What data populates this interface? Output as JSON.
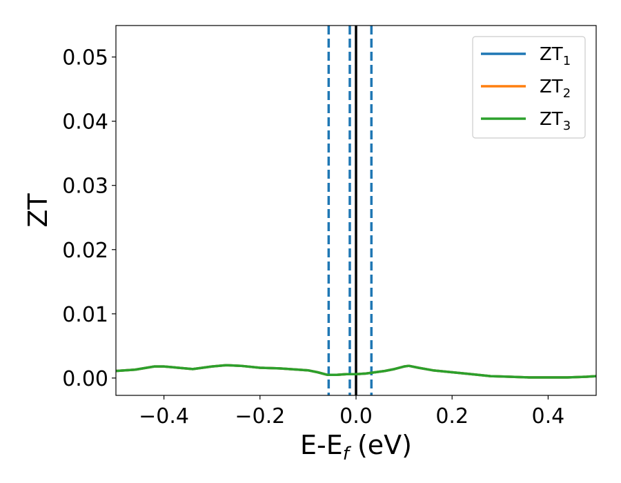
{
  "chart_data": {
    "type": "line",
    "title": "",
    "ylabel": "ZT",
    "xlabel": {
      "main": "E-E",
      "sub": "f",
      "unit": " (eV)"
    },
    "xlim": [
      -0.5,
      0.5
    ],
    "ylim": [
      -0.0027,
      0.0549
    ],
    "xticks": [
      -0.4,
      -0.2,
      0.0,
      0.2,
      0.4
    ],
    "xtick_labels": [
      "−0.4",
      "−0.2",
      "0.0",
      "0.2",
      "0.4"
    ],
    "yticks": [
      0.0,
      0.01,
      0.02,
      0.03,
      0.04,
      0.05
    ],
    "ytick_labels": [
      "0.00",
      "0.01",
      "0.02",
      "0.03",
      "0.04",
      "0.05"
    ],
    "grid": false,
    "legend_position": "top-right",
    "reference_lines": {
      "solid": {
        "x": 0.0,
        "color": "#000000"
      },
      "dashed": {
        "x": [
          -0.057,
          -0.013,
          0.032
        ],
        "color": "#1f77b4"
      }
    },
    "x": [
      -0.5,
      -0.46,
      -0.42,
      -0.4,
      -0.37,
      -0.34,
      -0.3,
      -0.27,
      -0.24,
      -0.2,
      -0.16,
      -0.12,
      -0.1,
      -0.08,
      -0.06,
      -0.04,
      -0.02,
      0.0,
      0.02,
      0.04,
      0.06,
      0.08,
      0.1,
      0.11,
      0.13,
      0.16,
      0.2,
      0.24,
      0.28,
      0.32,
      0.36,
      0.4,
      0.44,
      0.48,
      0.5
    ],
    "series": [
      {
        "name": {
          "main": "ZT",
          "sub": "1"
        },
        "color": "#1f77b4",
        "values": [
          0.0011,
          0.0013,
          0.0018,
          0.0018,
          0.0016,
          0.0014,
          0.0018,
          0.002,
          0.0019,
          0.0016,
          0.0015,
          0.0013,
          0.0012,
          0.0009,
          0.0005,
          0.0005,
          0.0006,
          0.0006,
          0.0007,
          0.0009,
          0.0011,
          0.0014,
          0.0018,
          0.0019,
          0.0016,
          0.0012,
          0.0009,
          0.0006,
          0.0003,
          0.0002,
          0.0001,
          0.0001,
          0.0001,
          0.0002,
          0.0003
        ]
      },
      {
        "name": {
          "main": "ZT",
          "sub": "2"
        },
        "color": "#ff7f0e",
        "values": [
          0.0011,
          0.0013,
          0.0018,
          0.0018,
          0.0016,
          0.0014,
          0.0018,
          0.002,
          0.0019,
          0.0016,
          0.0015,
          0.0013,
          0.0012,
          0.0009,
          0.0005,
          0.0005,
          0.0006,
          0.0006,
          0.0007,
          0.0009,
          0.0011,
          0.0014,
          0.0018,
          0.0019,
          0.0016,
          0.0012,
          0.0009,
          0.0006,
          0.0003,
          0.0002,
          0.0001,
          0.0001,
          0.0001,
          0.0002,
          0.0003
        ]
      },
      {
        "name": {
          "main": "ZT",
          "sub": "3"
        },
        "color": "#2ca02c",
        "values": [
          0.0011,
          0.0013,
          0.0018,
          0.0018,
          0.0016,
          0.0014,
          0.0018,
          0.002,
          0.0019,
          0.0016,
          0.0015,
          0.0013,
          0.0012,
          0.0009,
          0.0005,
          0.0005,
          0.0006,
          0.0006,
          0.0007,
          0.0009,
          0.0011,
          0.0014,
          0.0018,
          0.0019,
          0.0016,
          0.0012,
          0.0009,
          0.0006,
          0.0003,
          0.0002,
          0.0001,
          0.0001,
          0.0001,
          0.0002,
          0.0003
        ]
      }
    ]
  }
}
